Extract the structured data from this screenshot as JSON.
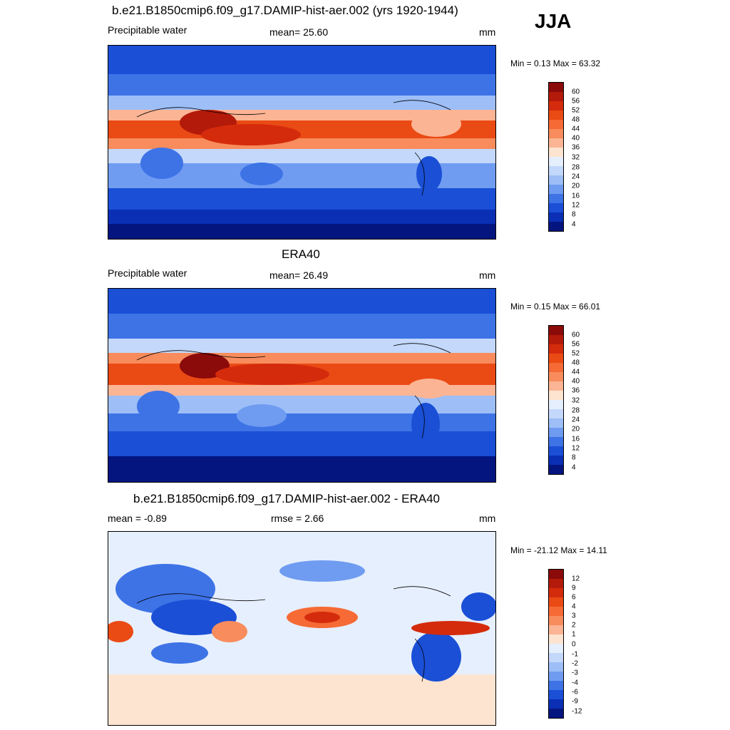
{
  "season": "JJA",
  "panels": [
    {
      "title": "b.e21.B1850cmip6.f09_g17.DAMIP-hist-aer.002 (yrs 1920-1944)",
      "left": "Precipitable water",
      "center": "mean=  25.60",
      "right": "mm",
      "minmax": "Min =   0.13 Max =  63.32",
      "colorbar_labels": [
        "60",
        "56",
        "52",
        "48",
        "44",
        "40",
        "36",
        "32",
        "28",
        "24",
        "20",
        "16",
        "12",
        "8",
        "4"
      ]
    },
    {
      "title": "ERA40",
      "left": "Precipitable water",
      "center": "mean=  26.49",
      "right": "mm",
      "minmax": "Min =   0.15 Max =  66.01",
      "colorbar_labels": [
        "60",
        "56",
        "52",
        "48",
        "44",
        "40",
        "36",
        "32",
        "28",
        "24",
        "20",
        "16",
        "12",
        "8",
        "4"
      ]
    },
    {
      "title": "b.e21.B1850cmip6.f09_g17.DAMIP-hist-aer.002 - ERA40",
      "left": "mean =  -0.89",
      "center": "rmse =   2.66",
      "right": "mm",
      "minmax": "Min = -21.12 Max =  14.11",
      "colorbar_labels": [
        "12",
        "9",
        "6",
        "4",
        "3",
        "2",
        "1",
        "0",
        "-1",
        "-2",
        "-3",
        "-4",
        "-6",
        "-9",
        "-12"
      ]
    }
  ],
  "colors": {
    "abs_scale": [
      "#8b0a0a",
      "#b31a0a",
      "#d42b0c",
      "#ea4a14",
      "#f56a35",
      "#f88c5c",
      "#fbb494",
      "#fde4d0",
      "#e6effd",
      "#c3d8fb",
      "#9dbef7",
      "#6f9cf1",
      "#3e73e6",
      "#1a4fd6",
      "#0a2fb5",
      "#04157f"
    ],
    "diff_scale": [
      "#8b0a0a",
      "#b31a0a",
      "#d42b0c",
      "#ea4a14",
      "#f56a35",
      "#f88c5c",
      "#fbb494",
      "#fde4d0",
      "#e6effd",
      "#c3d8fb",
      "#9dbef7",
      "#6f9cf1",
      "#3e73e6",
      "#1a4fd6",
      "#0a2fb5",
      "#04157f"
    ]
  }
}
